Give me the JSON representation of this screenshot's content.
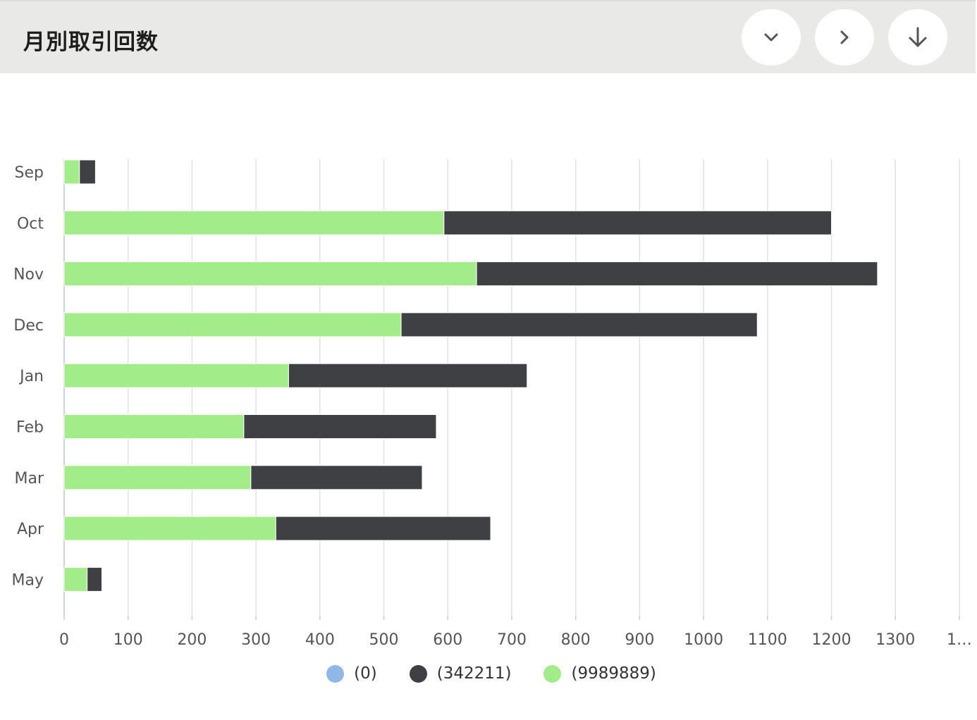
{
  "header": {
    "title": "月別取引回数",
    "buttons": [
      {
        "icon": "chevron-down-icon"
      },
      {
        "icon": "chevron-right-icon"
      },
      {
        "icon": "arrow-down-icon"
      }
    ]
  },
  "chart_data": {
    "type": "bar",
    "orientation": "horizontal",
    "stacked": true,
    "categories": [
      "Sep",
      "Oct",
      "Nov",
      "Dec",
      "Jan",
      "Feb",
      "Mar",
      "Apr",
      "May"
    ],
    "series": [
      {
        "name": "(0)",
        "color": "#8fb8e8",
        "values": [
          0,
          0,
          0,
          0,
          0,
          0,
          0,
          0,
          0
        ]
      },
      {
        "name": "(9989889)",
        "color": "#a3ec8a",
        "values": [
          24,
          594,
          645,
          527,
          351,
          281,
          292,
          331,
          36
        ]
      },
      {
        "name": "(342211)",
        "color": "#3f4044",
        "values": [
          25,
          606,
          627,
          557,
          373,
          301,
          268,
          336,
          23
        ]
      }
    ],
    "legend_order": [
      "(0)",
      "(342211)",
      "(9989889)"
    ],
    "x_ticks": [
      "0",
      "100",
      "200",
      "300",
      "400",
      "500",
      "600",
      "700",
      "800",
      "900",
      "1000",
      "1100",
      "1200",
      "1300",
      "1…"
    ],
    "xlim": [
      0,
      1400
    ],
    "grid": true,
    "legend_position": "bottom"
  }
}
